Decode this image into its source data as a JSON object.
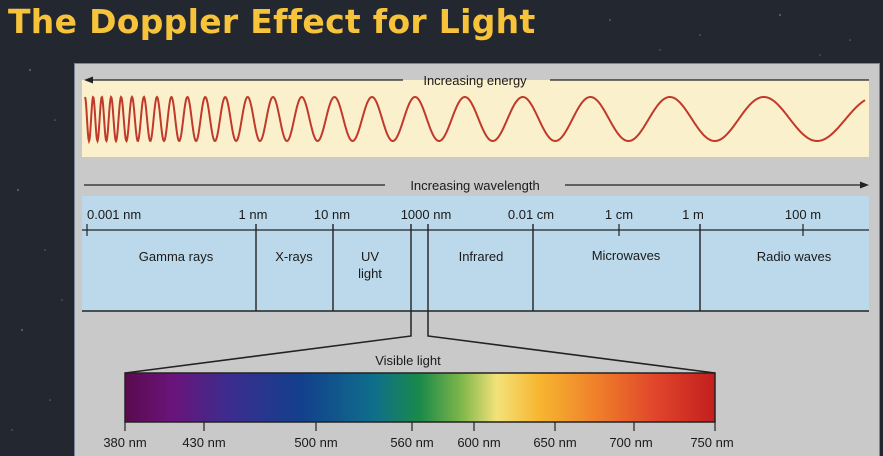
{
  "title": "The Doppler Effect for Light",
  "energy_label": "Increasing energy",
  "wavelength_label": "Increasing wavelength",
  "scale_ticks": [
    "0.001 nm",
    "1 nm",
    "10 nm",
    "1000 nm",
    "0.01 cm",
    "1 cm",
    "1 m",
    "100 m"
  ],
  "bands": [
    "Gamma rays",
    "X-rays",
    "UV",
    "light",
    "Infrared",
    "Microwaves",
    "Radio waves"
  ],
  "visible_label": "Visible light",
  "visible_ticks": [
    "380 nm",
    "430 nm",
    "500 nm",
    "560 nm",
    "600 nm",
    "650 nm",
    "700 nm",
    "750 nm"
  ],
  "colors": {
    "title": "#f6c33a",
    "wave": "#c0392b",
    "energy_band": "#fbf0cc",
    "spectrum_band": "#bcd9ec"
  }
}
